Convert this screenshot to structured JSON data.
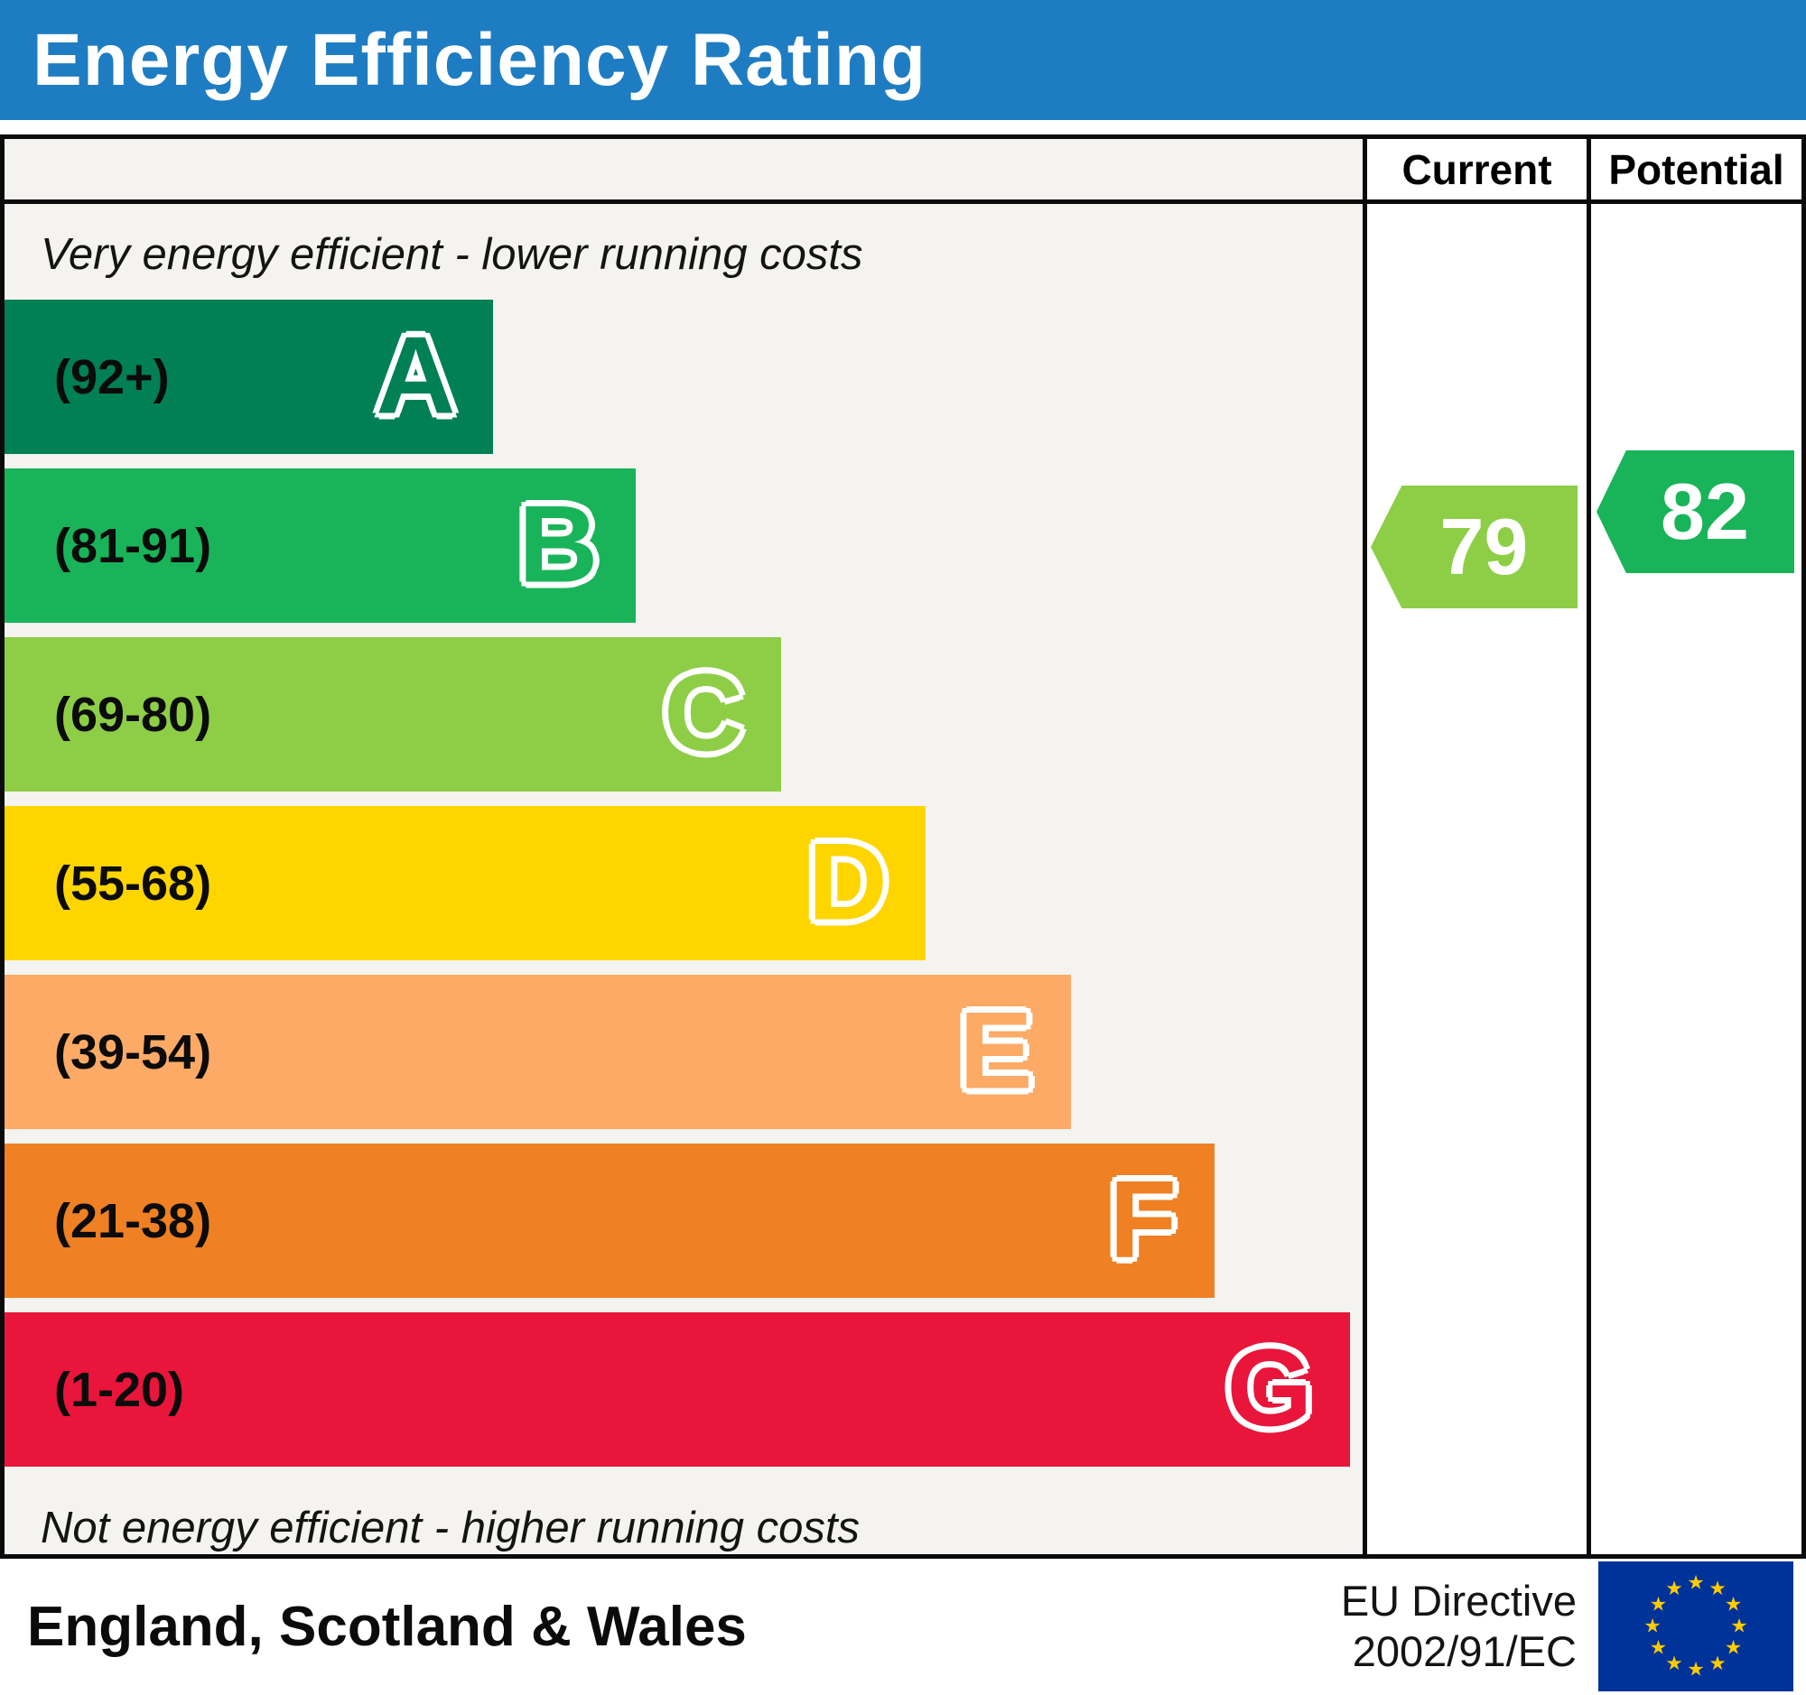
{
  "title": "Energy Efficiency Rating",
  "header": {
    "current_label": "Current",
    "potential_label": "Potential"
  },
  "notes": {
    "top": "Very energy efficient - lower running costs",
    "bottom": "Not energy efficient - higher running costs"
  },
  "footer": {
    "region": "England, Scotland & Wales",
    "directive_line1": "EU Directive",
    "directive_line2": "2002/91/EC",
    "flag_icon": "eu-flag-icon"
  },
  "colors": {
    "title_bar": "#1e7dc2",
    "eu_flag_blue": "#003399",
    "eu_flag_star": "#ffcc00"
  },
  "chart_data": {
    "type": "bar",
    "title": "Energy Efficiency Rating",
    "bands": [
      {
        "letter": "A",
        "range_label": "(92+)",
        "min": 92,
        "max": 100,
        "color": "#008054",
        "width_pct": 36.0
      },
      {
        "letter": "B",
        "range_label": "(81-91)",
        "min": 81,
        "max": 91,
        "color": "#19b459",
        "width_pct": 46.5
      },
      {
        "letter": "C",
        "range_label": "(69-80)",
        "min": 69,
        "max": 80,
        "color": "#8dce46",
        "width_pct": 57.2
      },
      {
        "letter": "D",
        "range_label": "(55-68)",
        "min": 55,
        "max": 68,
        "color": "#ffd500",
        "width_pct": 67.8
      },
      {
        "letter": "E",
        "range_label": "(39-54)",
        "min": 39,
        "max": 54,
        "color": "#fcaa65",
        "width_pct": 78.5
      },
      {
        "letter": "F",
        "range_label": "(21-38)",
        "min": 21,
        "max": 38,
        "color": "#ef8023",
        "width_pct": 89.1
      },
      {
        "letter": "G",
        "range_label": "(1-20)",
        "min": 1,
        "max": 20,
        "color": "#e9153b",
        "width_pct": 99.1
      }
    ],
    "current": {
      "value": 79,
      "band": "C",
      "color": "#8dce46"
    },
    "potential": {
      "value": 82,
      "band": "B",
      "color": "#19b459"
    }
  }
}
